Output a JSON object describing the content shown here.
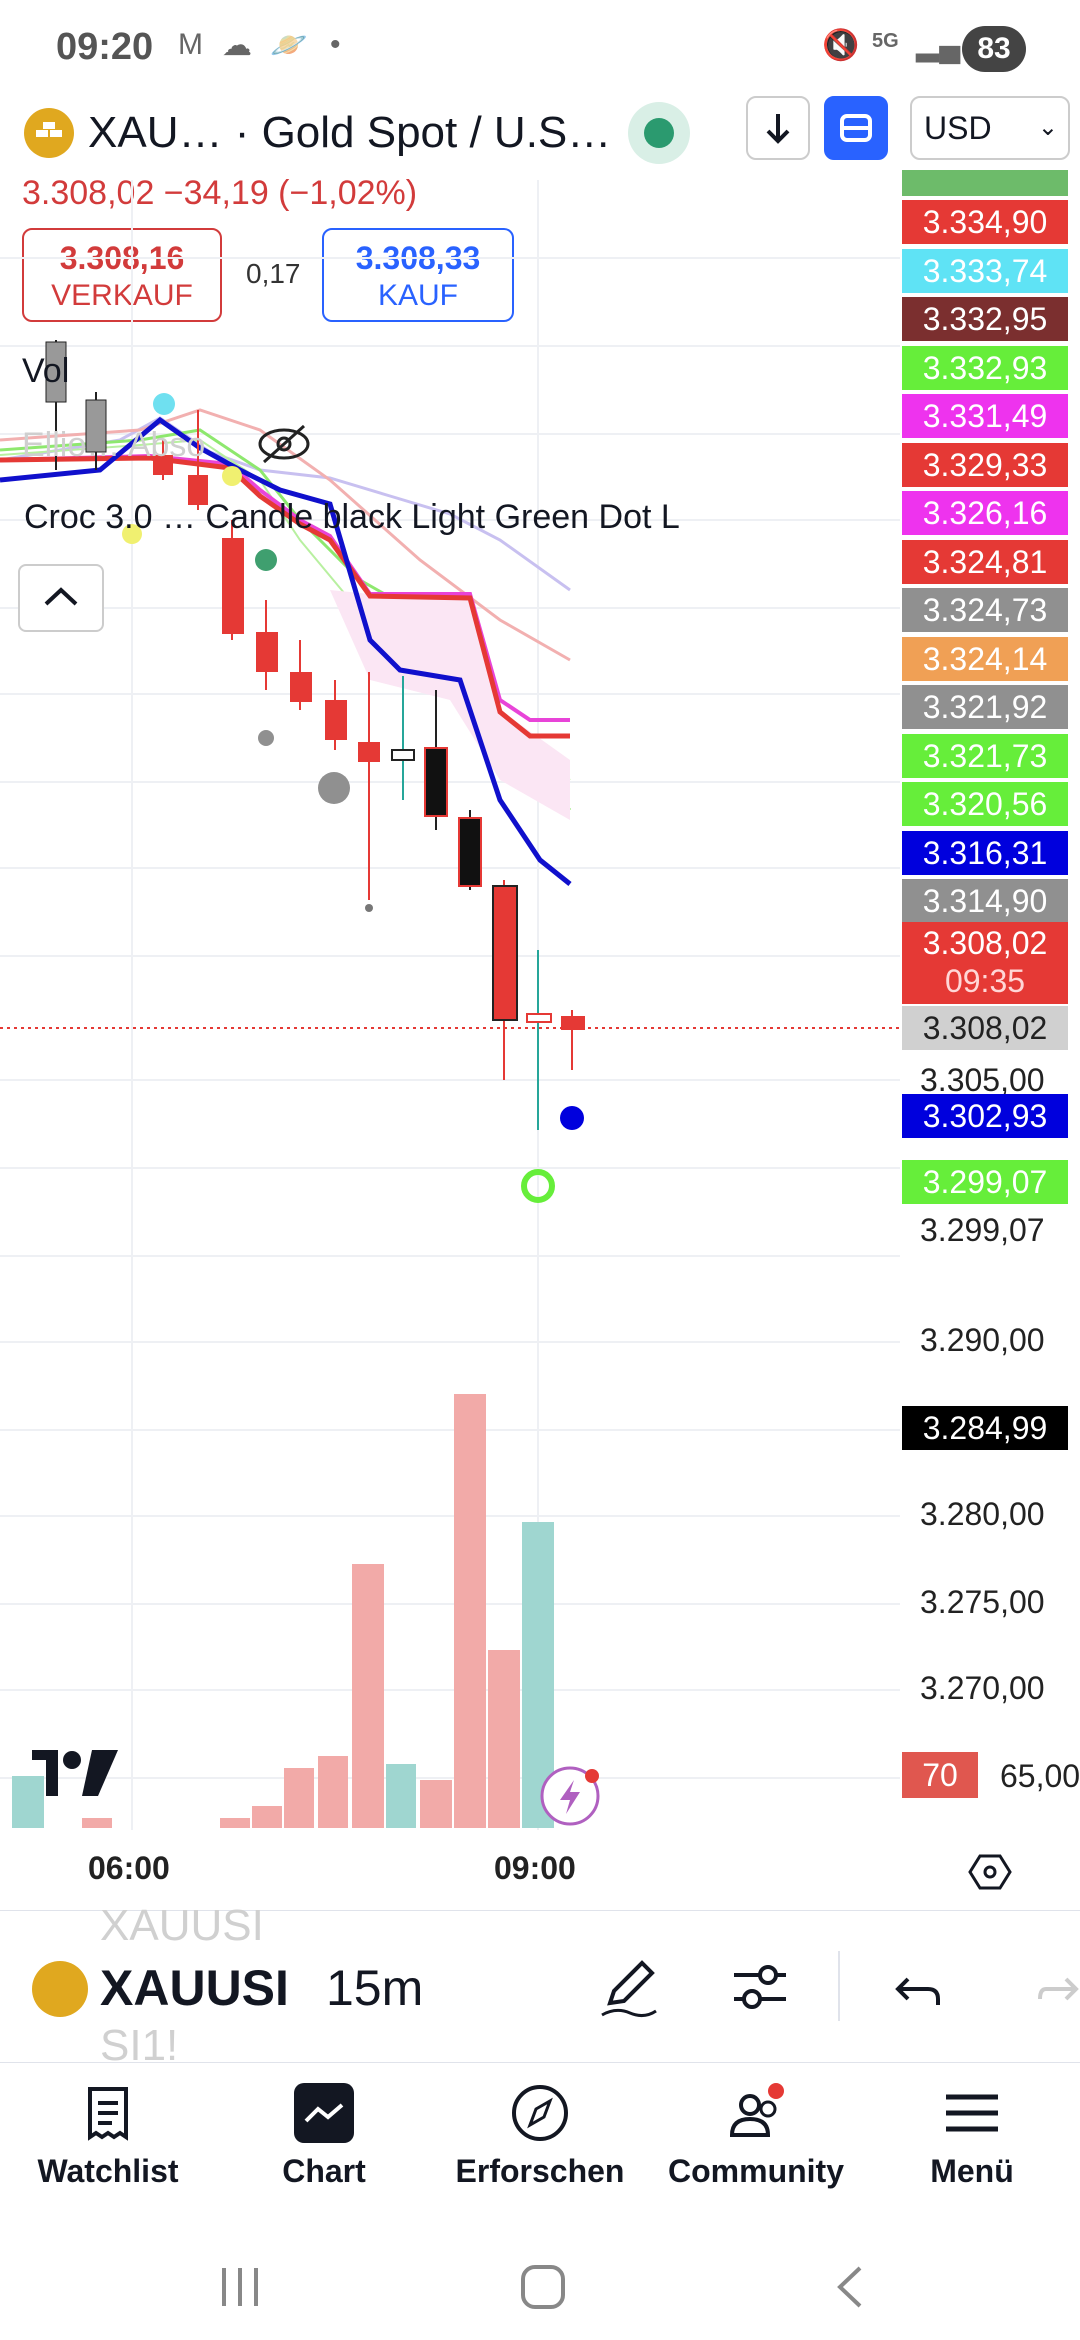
{
  "status_bar": {
    "time": "09:20",
    "battery": "83",
    "network": "5G"
  },
  "header": {
    "symbol_title": "XAU… · Gold Spot / U.S…",
    "currency": "USD",
    "price_line": "3.308,02  −34,19 (−1,02%)",
    "sell_price": "3.308,16",
    "sell_label": "VERKAUF",
    "spread": "0,17",
    "buy_price": "3.308,33",
    "buy_label": "KAUF"
  },
  "indicators": {
    "vol_label": "Vol",
    "elliott_label": "Ellio…  Abso",
    "croc_label": "Croc 3.0 …  Candle black  Light Green Dot  L"
  },
  "price_tags": [
    {
      "text": "3.334,90",
      "color": "#e53935"
    },
    {
      "text": "3.333,74",
      "color": "#5fe3f5"
    },
    {
      "text": "3.332,95",
      "color": "#7b2f2f"
    },
    {
      "text": "3.332,93",
      "color": "#66ee3a"
    },
    {
      "text": "3.331,49",
      "color": "#ee33ee"
    },
    {
      "text": "3.329,33",
      "color": "#e53935"
    },
    {
      "text": "3.326,16",
      "color": "#ee33ee"
    },
    {
      "text": "3.324,81",
      "color": "#e53935"
    },
    {
      "text": "3.324,73",
      "color": "#909090"
    },
    {
      "text": "3.324,14",
      "color": "#f0a055"
    },
    {
      "text": "3.321,92",
      "color": "#909090"
    },
    {
      "text": "3.321,73",
      "color": "#66ee3a"
    },
    {
      "text": "3.320,56",
      "color": "#66ee3a"
    },
    {
      "text": "3.316,31",
      "color": "#0000dd"
    },
    {
      "text": "3.314,90",
      "color": "#909090"
    }
  ],
  "last_price_tag": {
    "price": "3.308,02",
    "countdown": "09:35"
  },
  "crosshair_price": "3.308,02",
  "axis_labels": {
    "p3305": "3.305,00",
    "p3302": "3.302,93",
    "p3299g": "3.299,07",
    "p3299": "3.299,07",
    "p3290": "3.290,00",
    "p3284": "3.284,99",
    "p3280": "3.280,00",
    "p3275": "3.275,00",
    "p3270": "3.270,00",
    "p3265": "65,00",
    "badge70": "70"
  },
  "time_axis": [
    "06:00",
    "09:00"
  ],
  "toolbar": {
    "symbol": "XAUUSI",
    "interval": "15m",
    "ghost_top": "XAUUSI",
    "ghost_bottom": "SI1!"
  },
  "nav": [
    {
      "label": "Watchlist",
      "icon": "watchlist-icon"
    },
    {
      "label": "Chart",
      "icon": "chart-icon"
    },
    {
      "label": "Erforschen",
      "icon": "compass-icon"
    },
    {
      "label": "Community",
      "icon": "community-icon"
    },
    {
      "label": "Menü",
      "icon": "menu-icon"
    }
  ],
  "colors": {
    "bear": "#e53935",
    "bull": "#26a69a",
    "accent": "#2962ff"
  }
}
